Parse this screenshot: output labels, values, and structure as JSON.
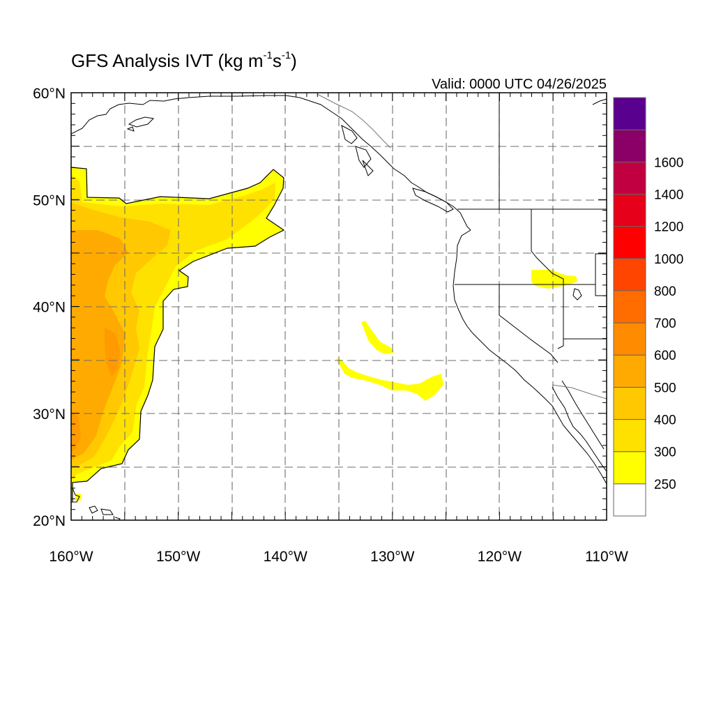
{
  "title": {
    "text": "GFS Analysis IVT (kg m",
    "sup1": "-1",
    "mid": "s",
    "sup2": "-1",
    "close": ")"
  },
  "valid_time": "Valid: 0000 UTC 04/26/2025",
  "map": {
    "lon_range": [
      -160,
      -110
    ],
    "lat_range": [
      20,
      60
    ],
    "lat_ticks": [
      {
        "value": 60,
        "label": "60°N"
      },
      {
        "value": 50,
        "label": "50°N"
      },
      {
        "value": 40,
        "label": "40°N"
      },
      {
        "value": 30,
        "label": "30°N"
      },
      {
        "value": 20,
        "label": "20°N"
      }
    ],
    "lon_ticks": [
      {
        "value": -160,
        "label": "160°W"
      },
      {
        "value": -150,
        "label": "150°W"
      },
      {
        "value": -140,
        "label": "140°W"
      },
      {
        "value": -130,
        "label": "130°W"
      },
      {
        "value": -120,
        "label": "120°W"
      },
      {
        "value": -110,
        "label": "110°W"
      }
    ],
    "grid_lines": "dashed every 5 degrees",
    "colors": {
      "c250": "#ffff00",
      "c300": "#ffe100",
      "c400": "#ffc800",
      "c500": "#ffaa00",
      "c600": "#ff8c00",
      "coast": "#000000",
      "border": "#777777"
    }
  },
  "colorbar": {
    "levels": [
      "250",
      "300",
      "400",
      "500",
      "600",
      "700",
      "800",
      "1000",
      "1200",
      "1400",
      "1600"
    ],
    "colors": [
      "#ffffff",
      "#ffff00",
      "#ffe100",
      "#ffc800",
      "#ffaa00",
      "#ff8c00",
      "#ff6c00",
      "#ff4500",
      "#ff0000",
      "#e6001a",
      "#c00040",
      "#8b0066",
      "#5a008f"
    ]
  }
}
